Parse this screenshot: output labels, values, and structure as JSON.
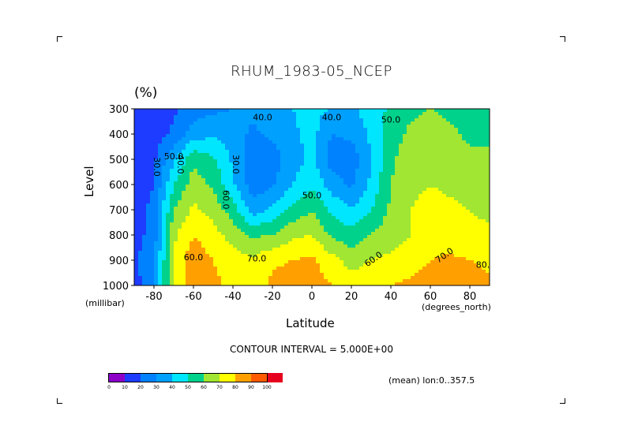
{
  "chart_data": {
    "type": "heatmap",
    "title": "RHUM_1983-05_NCEP",
    "units": "(%)",
    "xlabel": "Latitude",
    "ylabel": "Level",
    "x_unit": "(degrees_north)",
    "y_unit": "(millibar)",
    "x_ticks": [
      "-80",
      "-60",
      "-40",
      "-20",
      "0",
      "20",
      "40",
      "60",
      "80"
    ],
    "y_ticks": [
      "300",
      "400",
      "500",
      "600",
      "700",
      "800",
      "900",
      "1000"
    ],
    "xlim": [
      -90,
      90
    ],
    "ylim": [
      1000,
      300
    ],
    "lat": [
      -90,
      -80,
      -70,
      -60,
      -50,
      -40,
      -30,
      -20,
      -10,
      0,
      10,
      20,
      30,
      40,
      50,
      60,
      70,
      80,
      90
    ],
    "levels": [
      300,
      400,
      500,
      600,
      700,
      800,
      900,
      1000
    ],
    "values": [
      [
        15,
        12,
        18,
        25,
        28,
        30,
        33,
        38,
        40,
        42,
        40,
        38,
        45,
        52,
        58,
        60,
        58,
        55,
        55
      ],
      [
        10,
        15,
        22,
        35,
        38,
        35,
        28,
        32,
        38,
        44,
        30,
        32,
        42,
        55,
        62,
        64,
        62,
        58,
        58
      ],
      [
        12,
        18,
        38,
        58,
        52,
        38,
        22,
        25,
        35,
        42,
        25,
        24,
        40,
        58,
        66,
        66,
        64,
        62,
        62
      ],
      [
        10,
        20,
        50,
        65,
        58,
        42,
        24,
        28,
        40,
        48,
        35,
        28,
        42,
        60,
        68,
        70,
        68,
        66,
        66
      ],
      [
        12,
        25,
        60,
        72,
        66,
        55,
        35,
        42,
        52,
        60,
        48,
        40,
        50,
        62,
        70,
        73,
        72,
        70,
        68
      ],
      [
        15,
        25,
        68,
        80,
        74,
        66,
        58,
        60,
        68,
        70,
        58,
        55,
        60,
        66,
        70,
        74,
        74,
        72,
        72
      ],
      [
        18,
        28,
        72,
        86,
        80,
        75,
        72,
        78,
        80,
        82,
        74,
        65,
        70,
        72,
        76,
        80,
        82,
        80,
        78
      ],
      [
        15,
        30,
        70,
        88,
        82,
        78,
        76,
        82,
        86,
        84,
        80,
        76,
        78,
        80,
        82,
        84,
        86,
        84,
        82
      ]
    ],
    "contour_labels": [
      "40.0",
      "40.0",
      "50.0",
      "30.0",
      "40.0",
      "50.0",
      "60.0",
      "30.0",
      "50.0",
      "60.0",
      "70.0",
      "60.0",
      "70.0",
      "80.0"
    ],
    "contour_interval": "CONTOUR INTERVAL = 5.000E+00",
    "colorbar": {
      "levels": [
        "0",
        "10",
        "20",
        "30",
        "40",
        "50",
        "60",
        "70",
        "80",
        "90",
        "100"
      ],
      "colors": [
        "#8c00c8",
        "#1e3cff",
        "#0082ff",
        "#00a0ff",
        "#00e6ff",
        "#00d28c",
        "#a0e632",
        "#ffff00",
        "#ffa000",
        "#ff5a00",
        "#e6001e"
      ]
    },
    "footer": "(mean) lon:0..357.5"
  }
}
